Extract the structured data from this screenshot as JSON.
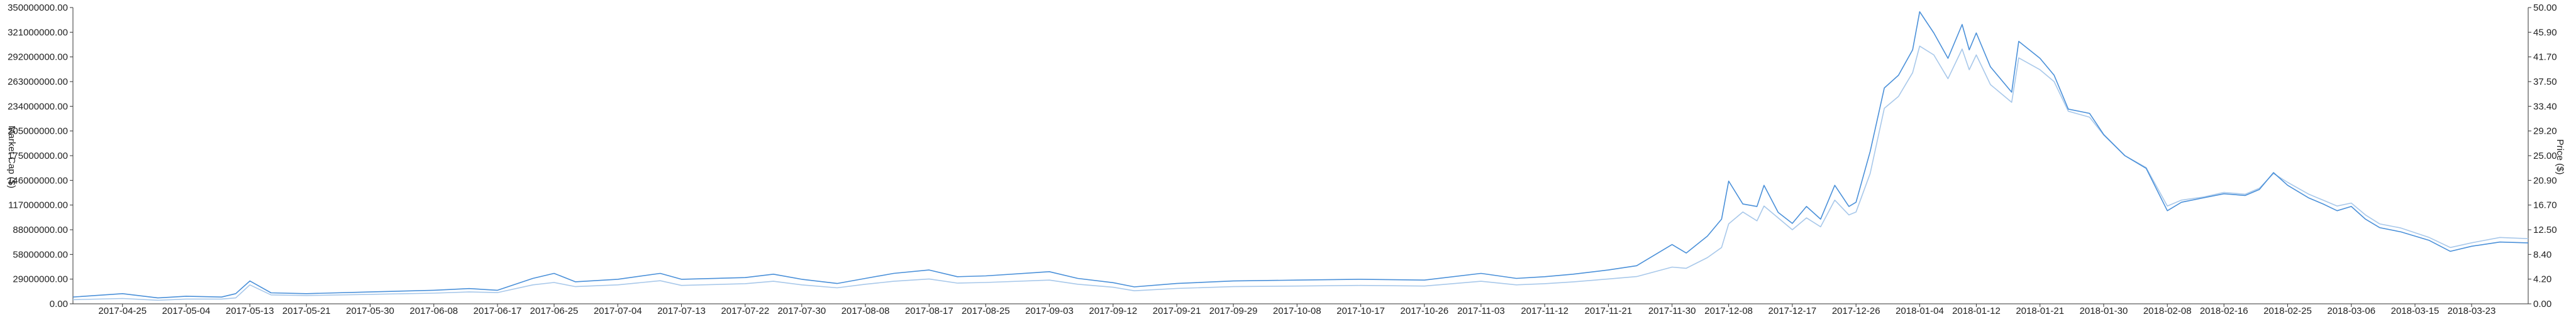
{
  "chart_data": {
    "type": "line",
    "xlabel": "",
    "ylabel_left": "Market Cap ($)",
    "ylabel_right": "Price ($)",
    "grid": false,
    "legend": "none",
    "x_ticks": [
      "2017-04-25",
      "2017-05-04",
      "2017-05-13",
      "2017-05-21",
      "2017-05-30",
      "2017-06-08",
      "2017-06-17",
      "2017-06-25",
      "2017-07-04",
      "2017-07-13",
      "2017-07-22",
      "2017-07-30",
      "2017-08-08",
      "2017-08-17",
      "2017-08-25",
      "2017-09-03",
      "2017-09-12",
      "2017-09-21",
      "2017-09-29",
      "2017-10-08",
      "2017-10-17",
      "2017-10-26",
      "2017-11-03",
      "2017-11-12",
      "2017-11-21",
      "2017-11-30",
      "2017-12-08",
      "2017-12-17",
      "2017-12-26",
      "2018-01-04",
      "2018-01-12",
      "2018-01-21",
      "2018-01-30",
      "2018-02-08",
      "2018-02-16",
      "2018-02-25",
      "2018-03-06",
      "2018-03-15",
      "2018-03-23"
    ],
    "y_ticks_left": [
      "0.00",
      "29000000.00",
      "58000000.00",
      "88000000.00",
      "117000000.00",
      "146000000.00",
      "175000000.00",
      "205000000.00",
      "234000000.00",
      "263000000.00",
      "292000000.00",
      "321000000.00",
      "350000000.00"
    ],
    "y_ticks_right": [
      "0.00",
      "4.20",
      "8.40",
      "12.50",
      "16.70",
      "20.90",
      "25.00",
      "29.20",
      "33.40",
      "37.50",
      "41.70",
      "45.90",
      "50.00"
    ],
    "x_range": [
      "2017-04-18",
      "2018-03-31"
    ],
    "ylim_left": [
      0,
      350000000
    ],
    "ylim_right": [
      0,
      50
    ],
    "series": [
      {
        "color": "#4a90d9",
        "axis": "left",
        "points": [
          [
            "2017-04-18",
            8000000
          ],
          [
            "2017-04-25",
            12000000
          ],
          [
            "2017-04-30",
            7000000
          ],
          [
            "2017-05-04",
            9000000
          ],
          [
            "2017-05-09",
            8000000
          ],
          [
            "2017-05-11",
            12000000
          ],
          [
            "2017-05-13",
            27000000
          ],
          [
            "2017-05-16",
            13000000
          ],
          [
            "2017-05-21",
            12000000
          ],
          [
            "2017-05-30",
            14000000
          ],
          [
            "2017-06-08",
            16000000
          ],
          [
            "2017-06-13",
            18000000
          ],
          [
            "2017-06-17",
            16000000
          ],
          [
            "2017-06-22",
            30000000
          ],
          [
            "2017-06-25",
            36000000
          ],
          [
            "2017-06-28",
            26000000
          ],
          [
            "2017-07-04",
            29000000
          ],
          [
            "2017-07-10",
            36000000
          ],
          [
            "2017-07-13",
            29000000
          ],
          [
            "2017-07-22",
            31000000
          ],
          [
            "2017-07-26",
            35000000
          ],
          [
            "2017-07-30",
            29000000
          ],
          [
            "2017-08-04",
            24000000
          ],
          [
            "2017-08-08",
            30000000
          ],
          [
            "2017-08-12",
            36000000
          ],
          [
            "2017-08-17",
            40000000
          ],
          [
            "2017-08-21",
            32000000
          ],
          [
            "2017-08-25",
            33000000
          ],
          [
            "2017-09-03",
            38000000
          ],
          [
            "2017-09-07",
            30000000
          ],
          [
            "2017-09-12",
            25000000
          ],
          [
            "2017-09-15",
            20000000
          ],
          [
            "2017-09-21",
            24000000
          ],
          [
            "2017-09-29",
            27000000
          ],
          [
            "2017-10-08",
            28000000
          ],
          [
            "2017-10-17",
            29000000
          ],
          [
            "2017-10-26",
            28000000
          ],
          [
            "2017-11-03",
            36000000
          ],
          [
            "2017-11-08",
            30000000
          ],
          [
            "2017-11-12",
            32000000
          ],
          [
            "2017-11-16",
            35000000
          ],
          [
            "2017-11-21",
            40000000
          ],
          [
            "2017-11-25",
            45000000
          ],
          [
            "2017-11-30",
            70000000
          ],
          [
            "2017-12-02",
            60000000
          ],
          [
            "2017-12-05",
            80000000
          ],
          [
            "2017-12-07",
            100000000
          ],
          [
            "2017-12-08",
            145000000
          ],
          [
            "2017-12-10",
            118000000
          ],
          [
            "2017-12-12",
            115000000
          ],
          [
            "2017-12-13",
            140000000
          ],
          [
            "2017-12-15",
            108000000
          ],
          [
            "2017-12-17",
            95000000
          ],
          [
            "2017-12-19",
            115000000
          ],
          [
            "2017-12-21",
            100000000
          ],
          [
            "2017-12-23",
            140000000
          ],
          [
            "2017-12-25",
            115000000
          ],
          [
            "2017-12-26",
            120000000
          ],
          [
            "2017-12-28",
            180000000
          ],
          [
            "2017-12-30",
            255000000
          ],
          [
            "2018-01-01",
            270000000
          ],
          [
            "2018-01-03",
            300000000
          ],
          [
            "2018-01-04",
            345000000
          ],
          [
            "2018-01-06",
            320000000
          ],
          [
            "2018-01-08",
            290000000
          ],
          [
            "2018-01-10",
            330000000
          ],
          [
            "2018-01-11",
            300000000
          ],
          [
            "2018-01-12",
            320000000
          ],
          [
            "2018-01-14",
            280000000
          ],
          [
            "2018-01-17",
            250000000
          ],
          [
            "2018-01-18",
            310000000
          ],
          [
            "2018-01-21",
            290000000
          ],
          [
            "2018-01-23",
            270000000
          ],
          [
            "2018-01-25",
            230000000
          ],
          [
            "2018-01-28",
            225000000
          ],
          [
            "2018-01-30",
            200000000
          ],
          [
            "2018-02-02",
            175000000
          ],
          [
            "2018-02-05",
            160000000
          ],
          [
            "2018-02-08",
            110000000
          ],
          [
            "2018-02-10",
            120000000
          ],
          [
            "2018-02-13",
            125000000
          ],
          [
            "2018-02-16",
            130000000
          ],
          [
            "2018-02-19",
            128000000
          ],
          [
            "2018-02-21",
            135000000
          ],
          [
            "2018-02-23",
            155000000
          ],
          [
            "2018-02-25",
            140000000
          ],
          [
            "2018-02-28",
            125000000
          ],
          [
            "2018-03-02",
            118000000
          ],
          [
            "2018-03-04",
            110000000
          ],
          [
            "2018-03-06",
            115000000
          ],
          [
            "2018-03-08",
            100000000
          ],
          [
            "2018-03-10",
            90000000
          ],
          [
            "2018-03-13",
            85000000
          ],
          [
            "2018-03-15",
            80000000
          ],
          [
            "2018-03-17",
            75000000
          ],
          [
            "2018-03-20",
            62000000
          ],
          [
            "2018-03-23",
            68000000
          ],
          [
            "2018-03-27",
            73000000
          ],
          [
            "2018-03-31",
            72000000
          ]
        ]
      },
      {
        "color": "#a8c8ea",
        "axis": "right",
        "points": [
          [
            "2017-04-18",
            0.7
          ],
          [
            "2017-04-25",
            0.9
          ],
          [
            "2017-04-30",
            0.6
          ],
          [
            "2017-05-04",
            0.8
          ],
          [
            "2017-05-09",
            0.8
          ],
          [
            "2017-05-11",
            1.0
          ],
          [
            "2017-05-13",
            3.2
          ],
          [
            "2017-05-16",
            1.5
          ],
          [
            "2017-05-21",
            1.4
          ],
          [
            "2017-05-30",
            1.6
          ],
          [
            "2017-06-08",
            1.8
          ],
          [
            "2017-06-13",
            2.0
          ],
          [
            "2017-06-17",
            1.9
          ],
          [
            "2017-06-22",
            3.2
          ],
          [
            "2017-06-25",
            3.6
          ],
          [
            "2017-06-28",
            2.9
          ],
          [
            "2017-07-04",
            3.2
          ],
          [
            "2017-07-10",
            3.9
          ],
          [
            "2017-07-13",
            3.1
          ],
          [
            "2017-07-22",
            3.4
          ],
          [
            "2017-07-26",
            3.8
          ],
          [
            "2017-07-30",
            3.2
          ],
          [
            "2017-08-04",
            2.7
          ],
          [
            "2017-08-08",
            3.3
          ],
          [
            "2017-08-12",
            3.8
          ],
          [
            "2017-08-17",
            4.2
          ],
          [
            "2017-08-21",
            3.5
          ],
          [
            "2017-08-25",
            3.6
          ],
          [
            "2017-09-03",
            4.0
          ],
          [
            "2017-09-07",
            3.3
          ],
          [
            "2017-09-12",
            2.8
          ],
          [
            "2017-09-15",
            2.2
          ],
          [
            "2017-09-21",
            2.6
          ],
          [
            "2017-09-29",
            2.9
          ],
          [
            "2017-10-08",
            3.0
          ],
          [
            "2017-10-17",
            3.1
          ],
          [
            "2017-10-26",
            3.0
          ],
          [
            "2017-11-03",
            3.8
          ],
          [
            "2017-11-08",
            3.2
          ],
          [
            "2017-11-12",
            3.4
          ],
          [
            "2017-11-16",
            3.7
          ],
          [
            "2017-11-21",
            4.2
          ],
          [
            "2017-11-25",
            4.6
          ],
          [
            "2017-11-30",
            6.2
          ],
          [
            "2017-12-02",
            6.0
          ],
          [
            "2017-12-05",
            7.8
          ],
          [
            "2017-12-07",
            9.5
          ],
          [
            "2017-12-08",
            13.5
          ],
          [
            "2017-12-10",
            15.5
          ],
          [
            "2017-12-12",
            14.0
          ],
          [
            "2017-12-13",
            16.5
          ],
          [
            "2017-12-15",
            14.5
          ],
          [
            "2017-12-17",
            12.5
          ],
          [
            "2017-12-19",
            14.5
          ],
          [
            "2017-12-21",
            13.0
          ],
          [
            "2017-12-23",
            17.5
          ],
          [
            "2017-12-25",
            15.0
          ],
          [
            "2017-12-26",
            15.5
          ],
          [
            "2017-12-28",
            22.0
          ],
          [
            "2017-12-30",
            33.0
          ],
          [
            "2018-01-01",
            35.0
          ],
          [
            "2018-01-03",
            39.0
          ],
          [
            "2018-01-04",
            43.5
          ],
          [
            "2018-01-06",
            42.0
          ],
          [
            "2018-01-08",
            38.0
          ],
          [
            "2018-01-10",
            43.0
          ],
          [
            "2018-01-11",
            39.5
          ],
          [
            "2018-01-12",
            42.0
          ],
          [
            "2018-01-14",
            37.0
          ],
          [
            "2018-01-17",
            34.0
          ],
          [
            "2018-01-18",
            41.5
          ],
          [
            "2018-01-21",
            39.5
          ],
          [
            "2018-01-23",
            37.5
          ],
          [
            "2018-01-25",
            32.5
          ],
          [
            "2018-01-28",
            31.5
          ],
          [
            "2018-01-30",
            28.5
          ],
          [
            "2018-02-02",
            25.0
          ],
          [
            "2018-02-05",
            23.0
          ],
          [
            "2018-02-08",
            16.5
          ],
          [
            "2018-02-10",
            17.5
          ],
          [
            "2018-02-13",
            18.0
          ],
          [
            "2018-02-16",
            18.8
          ],
          [
            "2018-02-19",
            18.5
          ],
          [
            "2018-02-21",
            19.5
          ],
          [
            "2018-02-23",
            22.0
          ],
          [
            "2018-02-25",
            20.5
          ],
          [
            "2018-02-28",
            18.5
          ],
          [
            "2018-03-02",
            17.5
          ],
          [
            "2018-03-04",
            16.5
          ],
          [
            "2018-03-06",
            17.0
          ],
          [
            "2018-03-08",
            15.0
          ],
          [
            "2018-03-10",
            13.5
          ],
          [
            "2018-03-13",
            12.8
          ],
          [
            "2018-03-15",
            12.0
          ],
          [
            "2018-03-17",
            11.2
          ],
          [
            "2018-03-20",
            9.5
          ],
          [
            "2018-03-23",
            10.3
          ],
          [
            "2018-03-27",
            11.2
          ],
          [
            "2018-03-31",
            11.0
          ]
        ]
      }
    ]
  }
}
